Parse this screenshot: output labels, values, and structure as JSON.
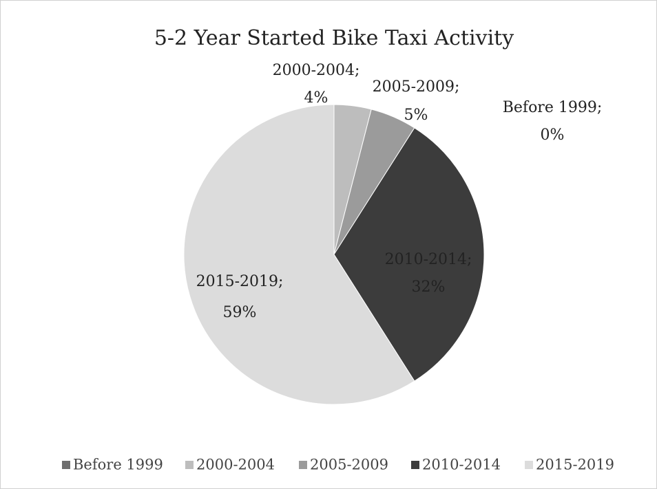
{
  "chart_data": {
    "type": "pie",
    "title": "5-2 Year Started Bike Taxi Activity",
    "categories": [
      "Before 1999",
      "2000-2004",
      "2005-2009",
      "2010-2014",
      "2015-2019"
    ],
    "values": [
      0,
      4,
      5,
      32,
      59
    ],
    "value_labels": [
      "0%",
      "4%",
      "5%",
      "32%",
      "59%"
    ],
    "label_separator": ";",
    "colors": [
      "#6e6e6e",
      "#bdbdbd",
      "#9b9b9b",
      "#3c3c3c",
      "#dcdcdc"
    ],
    "legend": "bottom"
  }
}
